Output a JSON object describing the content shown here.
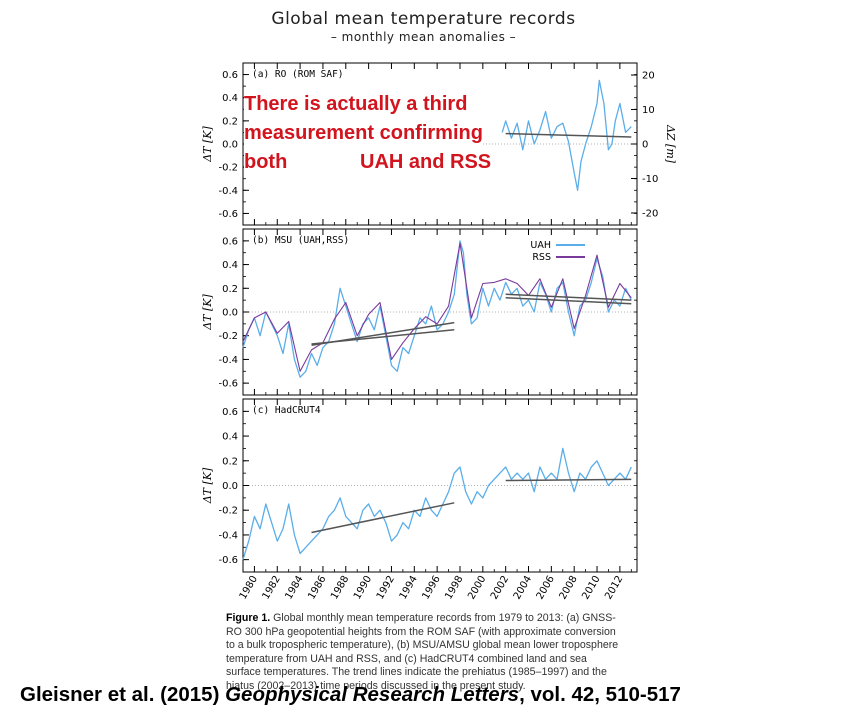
{
  "figure": {
    "title": "Global mean temperature records",
    "subtitle": "– monthly mean anomalies –"
  },
  "chart_data": [
    {
      "type": "line",
      "panel_label": "(a) RO (ROM SAF)",
      "ylabel": "ΔT [K]",
      "ylabel_right": "ΔZ [m]",
      "ylim": [
        -0.7,
        0.7
      ],
      "yticks": [
        "0.6",
        "0.4",
        "0.2",
        "0.0",
        "-0.2",
        "-0.4",
        "-0.6"
      ],
      "yticks_right": [
        "20",
        "10",
        "0",
        "-10",
        "-20"
      ],
      "series": [
        {
          "color": "#5aaeea",
          "x": [
            2001.7,
            2002.0,
            2002.5,
            2003.0,
            2003.5,
            2004.0,
            2004.5,
            2005.0,
            2005.5,
            2006.0,
            2006.5,
            2007.0,
            2007.5,
            2008.0,
            2008.3,
            2008.6,
            2009.0,
            2009.5,
            2010.0,
            2010.2,
            2010.6,
            2011.0,
            2011.3,
            2011.6,
            2012.0,
            2012.5,
            2013.0
          ],
          "y": [
            0.1,
            0.2,
            0.05,
            0.18,
            -0.05,
            0.2,
            0.0,
            0.12,
            0.28,
            0.05,
            0.15,
            0.18,
            0.02,
            -0.25,
            -0.4,
            -0.15,
            0.0,
            0.15,
            0.35,
            0.55,
            0.35,
            -0.05,
            0.0,
            0.2,
            0.35,
            0.1,
            0.15
          ]
        }
      ],
      "trends": [
        {
          "x": [
            2002.0,
            2013.0
          ],
          "y": [
            0.09,
            0.06
          ]
        }
      ]
    },
    {
      "type": "line",
      "panel_label": "(b) MSU (UAH,RSS)",
      "ylabel": "ΔT [K]",
      "ylim": [
        -0.7,
        0.7
      ],
      "yticks": [
        "0.6",
        "0.4",
        "0.2",
        "0.0",
        "-0.2",
        "-0.4",
        "-0.6"
      ],
      "legend_position": "top-right",
      "series": [
        {
          "name": "UAH",
          "color": "#5aaeea",
          "x": [
            1979.0,
            1979.5,
            1980.0,
            1980.5,
            1981.0,
            1981.5,
            1982.0,
            1982.5,
            1983.0,
            1983.5,
            1984.0,
            1984.5,
            1985.0,
            1985.5,
            1986.0,
            1986.5,
            1987.0,
            1987.5,
            1988.0,
            1988.5,
            1989.0,
            1989.5,
            1990.0,
            1990.5,
            1991.0,
            1991.5,
            1992.0,
            1992.5,
            1993.0,
            1993.5,
            1994.0,
            1994.5,
            1995.0,
            1995.5,
            1996.0,
            1996.5,
            1997.0,
            1997.5,
            1998.0,
            1998.3,
            1998.6,
            1999.0,
            1999.5,
            2000.0,
            2000.5,
            2001.0,
            2001.5,
            2002.0,
            2002.5,
            2003.0,
            2003.5,
            2004.0,
            2004.5,
            2005.0,
            2005.5,
            2006.0,
            2006.5,
            2007.0,
            2007.5,
            2008.0,
            2008.5,
            2009.0,
            2009.5,
            2010.0,
            2010.5,
            2011.0,
            2011.5,
            2012.0,
            2012.5,
            2013.0
          ],
          "y": [
            -0.3,
            -0.15,
            -0.05,
            -0.2,
            0.0,
            -0.1,
            -0.2,
            -0.35,
            -0.1,
            -0.4,
            -0.55,
            -0.5,
            -0.35,
            -0.45,
            -0.3,
            -0.25,
            -0.1,
            0.2,
            0.05,
            -0.1,
            -0.25,
            -0.1,
            -0.05,
            -0.15,
            0.05,
            -0.2,
            -0.45,
            -0.5,
            -0.3,
            -0.35,
            -0.2,
            -0.05,
            -0.1,
            0.05,
            -0.15,
            -0.1,
            0.0,
            0.15,
            0.6,
            0.5,
            0.15,
            -0.1,
            -0.05,
            0.2,
            0.05,
            0.2,
            0.1,
            0.25,
            0.15,
            0.2,
            0.05,
            0.1,
            0.0,
            0.25,
            0.15,
            0.0,
            0.2,
            0.25,
            0.0,
            -0.2,
            0.05,
            0.1,
            0.25,
            0.45,
            0.3,
            0.0,
            0.1,
            0.05,
            0.2,
            0.1
          ]
        },
        {
          "name": "RSS",
          "color": "#7a3a9c",
          "x": [
            1979.0,
            1980.0,
            1981.0,
            1982.0,
            1983.0,
            1984.0,
            1985.0,
            1986.0,
            1987.0,
            1988.0,
            1989.0,
            1990.0,
            1991.0,
            1992.0,
            1993.0,
            1994.0,
            1995.0,
            1996.0,
            1997.0,
            1998.0,
            1999.0,
            2000.0,
            2001.0,
            2002.0,
            2003.0,
            2004.0,
            2005.0,
            2006.0,
            2007.0,
            2008.0,
            2009.0,
            2010.0,
            2011.0,
            2012.0,
            2013.0
          ],
          "y": [
            -0.25,
            -0.05,
            0.0,
            -0.18,
            -0.08,
            -0.5,
            -0.32,
            -0.26,
            -0.06,
            0.08,
            -0.2,
            -0.02,
            0.08,
            -0.4,
            -0.26,
            -0.14,
            -0.04,
            -0.1,
            0.05,
            0.58,
            -0.05,
            0.24,
            0.25,
            0.28,
            0.24,
            0.14,
            0.28,
            0.04,
            0.28,
            -0.14,
            0.14,
            0.48,
            0.04,
            0.24,
            0.12
          ]
        }
      ],
      "trends": [
        {
          "x": [
            1985.0,
            1997.5
          ],
          "y": [
            -0.27,
            -0.15
          ]
        },
        {
          "x": [
            1985.0,
            1997.5
          ],
          "y": [
            -0.28,
            -0.09
          ]
        },
        {
          "x": [
            2002.0,
            2013.0
          ],
          "y": [
            0.15,
            0.1
          ]
        },
        {
          "x": [
            2002.0,
            2013.0
          ],
          "y": [
            0.12,
            0.07
          ]
        }
      ]
    },
    {
      "type": "line",
      "panel_label": "(c) HadCRUT4",
      "ylabel": "ΔT [K]",
      "ylim": [
        -0.7,
        0.7
      ],
      "yticks": [
        "0.6",
        "0.4",
        "0.2",
        "0.0",
        "-0.2",
        "-0.4",
        "-0.6"
      ],
      "xticks": [
        "1980",
        "1982",
        "1984",
        "1986",
        "1988",
        "1990",
        "1992",
        "1994",
        "1996",
        "1998",
        "2000",
        "2002",
        "2004",
        "2006",
        "2008",
        "2010",
        "2012"
      ],
      "series": [
        {
          "color": "#5aaeea",
          "x": [
            1979.0,
            1979.5,
            1980.0,
            1980.5,
            1981.0,
            1981.5,
            1982.0,
            1982.5,
            1983.0,
            1983.5,
            1984.0,
            1984.5,
            1985.0,
            1985.5,
            1986.0,
            1986.5,
            1987.0,
            1987.5,
            1988.0,
            1988.5,
            1989.0,
            1989.5,
            1990.0,
            1990.5,
            1991.0,
            1991.5,
            1992.0,
            1992.5,
            1993.0,
            1993.5,
            1994.0,
            1994.5,
            1995.0,
            1995.5,
            1996.0,
            1996.5,
            1997.0,
            1997.5,
            1998.0,
            1998.5,
            1999.0,
            1999.5,
            2000.0,
            2000.5,
            2001.0,
            2001.5,
            2002.0,
            2002.5,
            2003.0,
            2003.5,
            2004.0,
            2004.5,
            2005.0,
            2005.5,
            2006.0,
            2006.5,
            2007.0,
            2007.5,
            2008.0,
            2008.5,
            2009.0,
            2009.5,
            2010.0,
            2010.5,
            2011.0,
            2011.5,
            2012.0,
            2012.5,
            2013.0
          ],
          "y": [
            -0.6,
            -0.45,
            -0.25,
            -0.35,
            -0.15,
            -0.3,
            -0.45,
            -0.35,
            -0.15,
            -0.4,
            -0.55,
            -0.5,
            -0.45,
            -0.4,
            -0.35,
            -0.25,
            -0.2,
            -0.1,
            -0.25,
            -0.3,
            -0.35,
            -0.2,
            -0.15,
            -0.25,
            -0.2,
            -0.3,
            -0.45,
            -0.4,
            -0.3,
            -0.35,
            -0.2,
            -0.25,
            -0.1,
            -0.2,
            -0.25,
            -0.15,
            -0.05,
            0.1,
            0.15,
            -0.05,
            -0.15,
            -0.05,
            -0.1,
            0.0,
            0.05,
            0.1,
            0.15,
            0.05,
            0.1,
            0.05,
            0.1,
            -0.05,
            0.15,
            0.05,
            0.1,
            0.05,
            0.3,
            0.1,
            -0.05,
            0.1,
            0.05,
            0.15,
            0.2,
            0.1,
            0.0,
            0.05,
            0.1,
            0.05,
            0.15
          ]
        }
      ],
      "trends": [
        {
          "x": [
            1985.0,
            1997.5
          ],
          "y": [
            -0.38,
            -0.14
          ]
        },
        {
          "x": [
            2002.0,
            2013.0
          ],
          "y": [
            0.04,
            0.05
          ]
        }
      ]
    }
  ],
  "annotation": {
    "line1": "There is actually a third",
    "line2": "measurement confirming",
    "line3a": "both",
    "line3b": "UAH and RSS",
    "color": "#d2141e"
  },
  "caption": {
    "label": "Figure 1.",
    "text": " Global monthly mean temperature records from 1979 to 2013: (a) GNSS-RO 300 hPa geopotential heights from the ROM SAF (with approximate conversion to a bulk tropospheric temperature), (b) MSU/AMSU global mean lower troposphere temperature from UAH and RSS, and (c) HadCRUT4 combined land and sea surface temperatures. The trend lines indicate the prehiatus (1985–1997) and the hiatus (2002–2013) time periods discussed in the present study."
  },
  "citation": {
    "authors": "Gleisner et al. (2015) ",
    "journal": "Geophysical Research Letters",
    "details": ", vol. 42, 510-517"
  }
}
